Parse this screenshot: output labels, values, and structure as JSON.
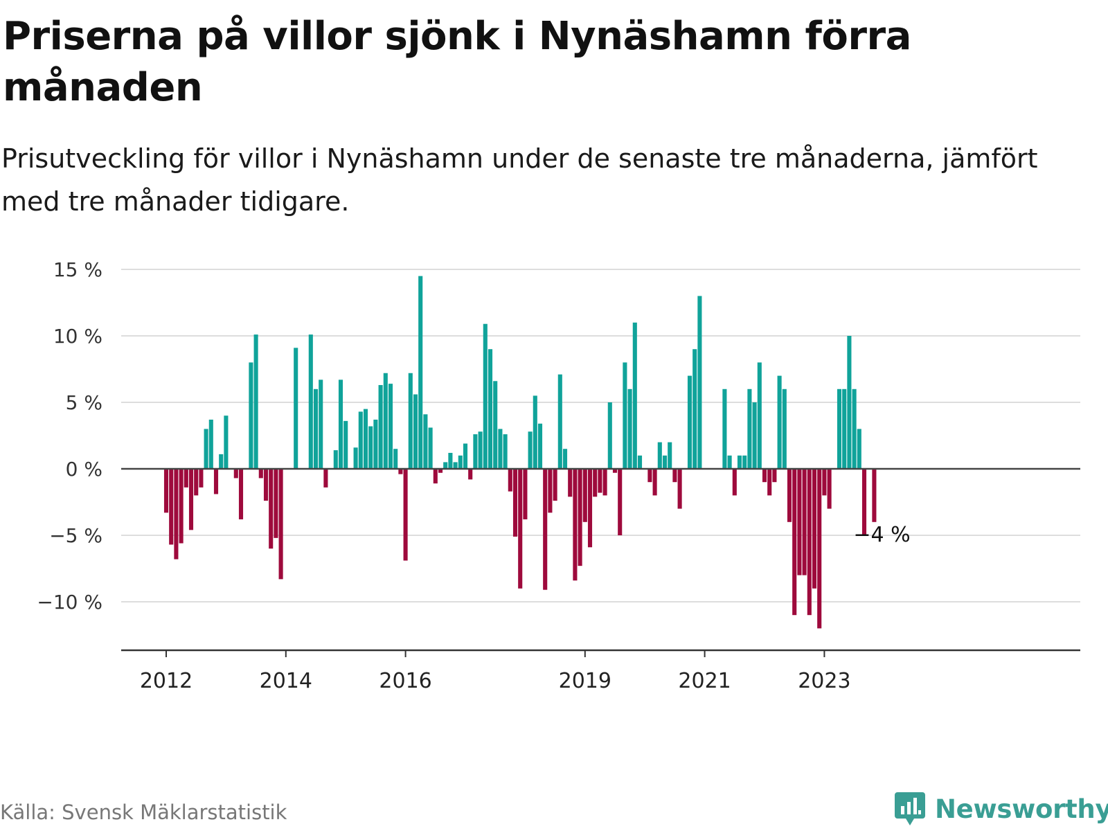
{
  "header": {
    "title": "Priserna på villor sjönk i Nynäshamn förra månaden",
    "subtitle": "Prisutveckling för villor i Nynäshamn under de senaste tre månaderna, jämfört med tre månader tidigare."
  },
  "footer": {
    "source": "Källa: Svensk Mäklarstatistik",
    "brand": "Newsworthy",
    "brand_icon": "newsworthy-logo-icon"
  },
  "colors": {
    "positive": "#10a39a",
    "negative": "#9e0a3c",
    "grid": "#dddddd",
    "axis": "#333333",
    "brand": "#3a9e94"
  },
  "chart_data": {
    "type": "bar",
    "title": "Priserna på villor sjönk i Nynäshamn förra månaden",
    "xlabel": "",
    "ylabel": "",
    "ylim": [
      -12.3,
      15
    ],
    "y_ticks": [
      {
        "value": 15,
        "label": "15 %"
      },
      {
        "value": 10,
        "label": "10 %"
      },
      {
        "value": 5,
        "label": "5 %"
      },
      {
        "value": 0,
        "label": "0 %"
      },
      {
        "value": -5,
        "label": "−5 %"
      },
      {
        "value": -10,
        "label": "−10 %"
      }
    ],
    "x_ticks": [
      {
        "index": 0,
        "label": "2012"
      },
      {
        "index": 24,
        "label": "2014"
      },
      {
        "index": 48,
        "label": "2016"
      },
      {
        "index": 84,
        "label": "2019"
      },
      {
        "index": 108,
        "label": "2021"
      },
      {
        "index": 132,
        "label": "2023"
      }
    ],
    "categories_start": "2012-01",
    "values": [
      -3.3,
      -5.7,
      -6.8,
      -5.6,
      -1.4,
      -4.6,
      -2.0,
      -1.4,
      3.0,
      3.7,
      -1.9,
      1.1,
      4.0,
      0,
      -0.7,
      -3.8,
      0,
      8.0,
      10.1,
      -0.7,
      -2.4,
      -6.0,
      -5.2,
      -8.3,
      0,
      0,
      9.1,
      0,
      0,
      10.1,
      6.0,
      6.7,
      -1.4,
      0,
      1.4,
      6.7,
      3.6,
      0,
      1.6,
      4.3,
      4.5,
      3.2,
      3.7,
      6.3,
      7.2,
      6.4,
      1.5,
      -0.4,
      -6.9,
      7.2,
      5.6,
      14.5,
      4.1,
      3.1,
      -1.1,
      -0.3,
      0.5,
      1.2,
      0.5,
      1.0,
      1.9,
      -0.8,
      2.6,
      2.8,
      10.9,
      9.0,
      6.6,
      3.0,
      2.6,
      -1.7,
      -5.1,
      -9.0,
      -3.8,
      2.8,
      5.5,
      3.4,
      -9.1,
      -3.3,
      -2.4,
      7.1,
      1.5,
      -2.1,
      -8.4,
      -7.3,
      -4.0,
      -5.9,
      -2.1,
      -1.8,
      -2.0,
      5.0,
      -0.3,
      -5.0,
      8.0,
      6.0,
      11.0,
      1.0,
      0,
      -1.0,
      -2.0,
      2.0,
      1.0,
      2.0,
      -1.0,
      -3.0,
      0,
      7.0,
      9.0,
      13.0,
      0,
      0,
      0,
      0,
      6.0,
      1.0,
      -2.0,
      1.0,
      1.0,
      6.0,
      5.0,
      8.0,
      -1.0,
      -2.0,
      -1.0,
      7.0,
      6.0,
      -4.0,
      -11.0,
      -8.0,
      -8.0,
      -11.0,
      -9.0,
      -12.0,
      -2.0,
      -3.0,
      0,
      6.0,
      6.0,
      10.0,
      6.0,
      3.0,
      -5.0,
      0,
      -4.0
    ],
    "annotations": [
      {
        "index": 142,
        "value": -4.0,
        "label": "−4 %"
      }
    ]
  }
}
